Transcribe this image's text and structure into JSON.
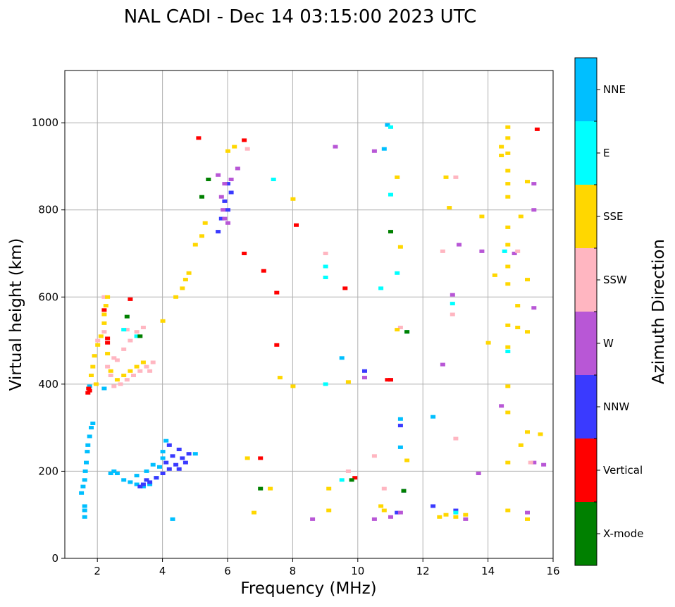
{
  "chart_data": {
    "type": "scatter",
    "title": "NAL CADI - Dec 14 03:15:00 2023 UTC",
    "xlabel": "Frequency (MHz)",
    "ylabel": "Virtual height (km)",
    "xlim": [
      1,
      16
    ],
    "ylim": [
      0,
      1120
    ],
    "xticks": [
      2,
      4,
      6,
      8,
      10,
      12,
      14,
      16
    ],
    "yticks": [
      0,
      200,
      400,
      600,
      800,
      1000
    ],
    "grid": true,
    "colorbar": {
      "label": "Azimuth Direction",
      "categories": [
        {
          "name": "X-mode",
          "color": "#008000"
        },
        {
          "name": "Vertical",
          "color": "#ff0000"
        },
        {
          "name": "NNW",
          "color": "#3a3aff"
        },
        {
          "name": "W",
          "color": "#b857d6"
        },
        {
          "name": "SSW",
          "color": "#ffb6c1"
        },
        {
          "name": "SSE",
          "color": "#ffd700"
        },
        {
          "name": "E",
          "color": "#00ffff"
        },
        {
          "name": "NNE",
          "color": "#00bfff"
        }
      ]
    },
    "series": [
      {
        "name": "NNE",
        "points": [
          [
            1.5,
            150
          ],
          [
            1.55,
            165
          ],
          [
            1.6,
            180
          ],
          [
            1.62,
            200
          ],
          [
            1.65,
            220
          ],
          [
            1.68,
            245
          ],
          [
            1.7,
            260
          ],
          [
            1.75,
            280
          ],
          [
            1.8,
            300
          ],
          [
            1.85,
            310
          ],
          [
            1.6,
            95
          ],
          [
            1.6,
            110
          ],
          [
            1.6,
            120
          ],
          [
            2.4,
            195
          ],
          [
            2.5,
            200
          ],
          [
            2.6,
            195
          ],
          [
            2.8,
            180
          ],
          [
            3.0,
            175
          ],
          [
            3.2,
            170
          ],
          [
            3.4,
            165
          ],
          [
            3.6,
            170
          ],
          [
            3.8,
            185
          ],
          [
            3.9,
            210
          ],
          [
            4.0,
            230
          ],
          [
            4.0,
            245
          ],
          [
            4.1,
            270
          ],
          [
            4.3,
            90
          ],
          [
            2.2,
            390
          ],
          [
            1.75,
            395
          ],
          [
            3.2,
            190
          ],
          [
            3.5,
            200
          ],
          [
            3.7,
            215
          ],
          [
            5.0,
            240
          ],
          [
            10.9,
            995
          ],
          [
            10.8,
            940
          ],
          [
            11.3,
            320
          ],
          [
            11.3,
            255
          ],
          [
            12.3,
            325
          ],
          [
            9.5,
            460
          ]
        ]
      },
      {
        "name": "NNW",
        "points": [
          [
            3.8,
            185
          ],
          [
            4.0,
            195
          ],
          [
            4.2,
            205
          ],
          [
            4.4,
            215
          ],
          [
            4.6,
            230
          ],
          [
            4.8,
            240
          ],
          [
            4.1,
            220
          ],
          [
            4.3,
            235
          ],
          [
            4.5,
            250
          ],
          [
            4.2,
            260
          ],
          [
            3.5,
            180
          ],
          [
            3.6,
            175
          ],
          [
            3.4,
            170
          ],
          [
            3.3,
            165
          ],
          [
            4.5,
            205
          ],
          [
            4.7,
            220
          ],
          [
            6.0,
            860
          ],
          [
            6.1,
            840
          ],
          [
            5.9,
            820
          ],
          [
            5.8,
            780
          ],
          [
            5.7,
            750
          ],
          [
            6.0,
            800
          ],
          [
            11.4,
            155
          ],
          [
            11.2,
            105
          ],
          [
            12.3,
            120
          ],
          [
            10.2,
            430
          ],
          [
            11.3,
            305
          ],
          [
            13.0,
            110
          ]
        ]
      },
      {
        "name": "W",
        "points": [
          [
            5.9,
            860
          ],
          [
            5.8,
            830
          ],
          [
            5.85,
            800
          ],
          [
            5.9,
            780
          ],
          [
            6.0,
            770
          ],
          [
            6.3,
            895
          ],
          [
            6.1,
            870
          ],
          [
            5.7,
            880
          ],
          [
            11.0,
            410
          ],
          [
            12.6,
            445
          ],
          [
            12.9,
            605
          ],
          [
            13.1,
            720
          ],
          [
            13.8,
            705
          ],
          [
            14.8,
            700
          ],
          [
            15.4,
            860
          ],
          [
            15.4,
            800
          ],
          [
            15.4,
            575
          ],
          [
            15.4,
            220
          ],
          [
            15.7,
            215
          ],
          [
            10.5,
            935
          ],
          [
            9.3,
            945
          ],
          [
            13.3,
            90
          ],
          [
            8.6,
            90
          ],
          [
            11.0,
            95
          ],
          [
            10.5,
            90
          ],
          [
            11.3,
            105
          ],
          [
            13.7,
            195
          ],
          [
            15.2,
            105
          ],
          [
            14.4,
            350
          ],
          [
            10.2,
            415
          ]
        ]
      },
      {
        "name": "SSW",
        "points": [
          [
            2.5,
            395
          ],
          [
            2.7,
            400
          ],
          [
            2.9,
            410
          ],
          [
            3.1,
            420
          ],
          [
            3.3,
            430
          ],
          [
            3.5,
            440
          ],
          [
            3.7,
            450
          ],
          [
            2.3,
            440
          ],
          [
            2.5,
            460
          ],
          [
            2.8,
            480
          ],
          [
            3.0,
            500
          ],
          [
            3.2,
            520
          ],
          [
            3.4,
            530
          ],
          [
            2.2,
            600
          ],
          [
            2.2,
            520
          ],
          [
            2.0,
            500
          ],
          [
            2.4,
            420
          ],
          [
            2.6,
            455
          ],
          [
            2.9,
            525
          ],
          [
            3.6,
            430
          ],
          [
            12.6,
            705
          ],
          [
            12.9,
            560
          ],
          [
            13.0,
            875
          ],
          [
            13.0,
            275
          ],
          [
            14.9,
            705
          ],
          [
            11.3,
            530
          ],
          [
            15.3,
            220
          ],
          [
            9.0,
            700
          ],
          [
            10.8,
            160
          ],
          [
            9.7,
            200
          ],
          [
            10.5,
            235
          ],
          [
            6.6,
            940
          ]
        ]
      },
      {
        "name": "SSE",
        "points": [
          [
            2.2,
            560
          ],
          [
            2.25,
            580
          ],
          [
            2.3,
            600
          ],
          [
            2.2,
            540
          ],
          [
            2.1,
            510
          ],
          [
            2.0,
            490
          ],
          [
            1.9,
            465
          ],
          [
            1.85,
            440
          ],
          [
            1.8,
            420
          ],
          [
            1.95,
            400
          ],
          [
            2.3,
            470
          ],
          [
            2.4,
            430
          ],
          [
            2.6,
            410
          ],
          [
            2.8,
            420
          ],
          [
            3.0,
            430
          ],
          [
            3.2,
            440
          ],
          [
            3.4,
            450
          ],
          [
            4.0,
            545
          ],
          [
            4.4,
            600
          ],
          [
            4.6,
            620
          ],
          [
            4.7,
            640
          ],
          [
            4.8,
            655
          ],
          [
            5.0,
            720
          ],
          [
            5.2,
            740
          ],
          [
            5.3,
            770
          ],
          [
            6.0,
            935
          ],
          [
            6.2,
            945
          ],
          [
            6.6,
            230
          ],
          [
            7.3,
            160
          ],
          [
            6.8,
            105
          ],
          [
            8.0,
            825
          ],
          [
            7.6,
            415
          ],
          [
            8.0,
            395
          ],
          [
            11.2,
            875
          ],
          [
            11.3,
            715
          ],
          [
            12.7,
            875
          ],
          [
            12.8,
            805
          ],
          [
            13.8,
            785
          ],
          [
            14.2,
            650
          ],
          [
            14.0,
            495
          ],
          [
            14.6,
            990
          ],
          [
            14.6,
            965
          ],
          [
            14.6,
            930
          ],
          [
            14.6,
            890
          ],
          [
            14.6,
            860
          ],
          [
            14.6,
            830
          ],
          [
            14.6,
            760
          ],
          [
            14.6,
            720
          ],
          [
            14.6,
            670
          ],
          [
            14.6,
            630
          ],
          [
            14.6,
            535
          ],
          [
            14.6,
            485
          ],
          [
            14.6,
            395
          ],
          [
            14.6,
            335
          ],
          [
            14.6,
            220
          ],
          [
            14.6,
            110
          ],
          [
            14.9,
            580
          ],
          [
            14.9,
            530
          ],
          [
            15.0,
            785
          ],
          [
            15.2,
            865
          ],
          [
            15.2,
            640
          ],
          [
            15.2,
            520
          ],
          [
            15.2,
            290
          ],
          [
            15.6,
            285
          ],
          [
            15.0,
            260
          ],
          [
            15.2,
            90
          ],
          [
            12.5,
            95
          ],
          [
            12.7,
            100
          ],
          [
            13.0,
            95
          ],
          [
            13.3,
            100
          ],
          [
            11.5,
            225
          ],
          [
            10.7,
            120
          ],
          [
            10.8,
            110
          ],
          [
            9.1,
            110
          ],
          [
            9.1,
            160
          ],
          [
            9.7,
            405
          ],
          [
            11.2,
            525
          ],
          [
            14.4,
            945
          ],
          [
            14.4,
            925
          ]
        ]
      },
      {
        "name": "E",
        "points": [
          [
            9.0,
            670
          ],
          [
            9.0,
            645
          ],
          [
            10.7,
            620
          ],
          [
            11.0,
            835
          ],
          [
            11.2,
            655
          ],
          [
            11.5,
            520
          ],
          [
            12.9,
            585
          ],
          [
            14.5,
            705
          ],
          [
            14.6,
            475
          ],
          [
            9.0,
            400
          ],
          [
            9.5,
            180
          ],
          [
            13.0,
            105
          ],
          [
            11.0,
            990
          ],
          [
            7.4,
            870
          ],
          [
            2.8,
            525
          ],
          [
            3.2,
            510
          ]
        ]
      },
      {
        "name": "Vertical",
        "points": [
          [
            1.7,
            380
          ],
          [
            1.72,
            390
          ],
          [
            1.75,
            385
          ],
          [
            2.3,
            495
          ],
          [
            2.2,
            570
          ],
          [
            2.3,
            505
          ],
          [
            3.0,
            595
          ],
          [
            6.5,
            960
          ],
          [
            6.5,
            700
          ],
          [
            7.5,
            490
          ],
          [
            8.1,
            765
          ],
          [
            9.6,
            620
          ],
          [
            10.9,
            410
          ],
          [
            11.0,
            410
          ],
          [
            15.5,
            985
          ],
          [
            9.9,
            185
          ],
          [
            7.0,
            230
          ],
          [
            7.5,
            610
          ],
          [
            7.1,
            660
          ],
          [
            5.1,
            965
          ]
        ]
      },
      {
        "name": "X-mode",
        "points": [
          [
            2.9,
            555
          ],
          [
            3.3,
            510
          ],
          [
            11.5,
            520
          ],
          [
            11.4,
            155
          ],
          [
            9.8,
            180
          ],
          [
            11.0,
            750
          ],
          [
            7.0,
            160
          ],
          [
            5.4,
            870
          ],
          [
            5.2,
            830
          ]
        ]
      }
    ]
  }
}
